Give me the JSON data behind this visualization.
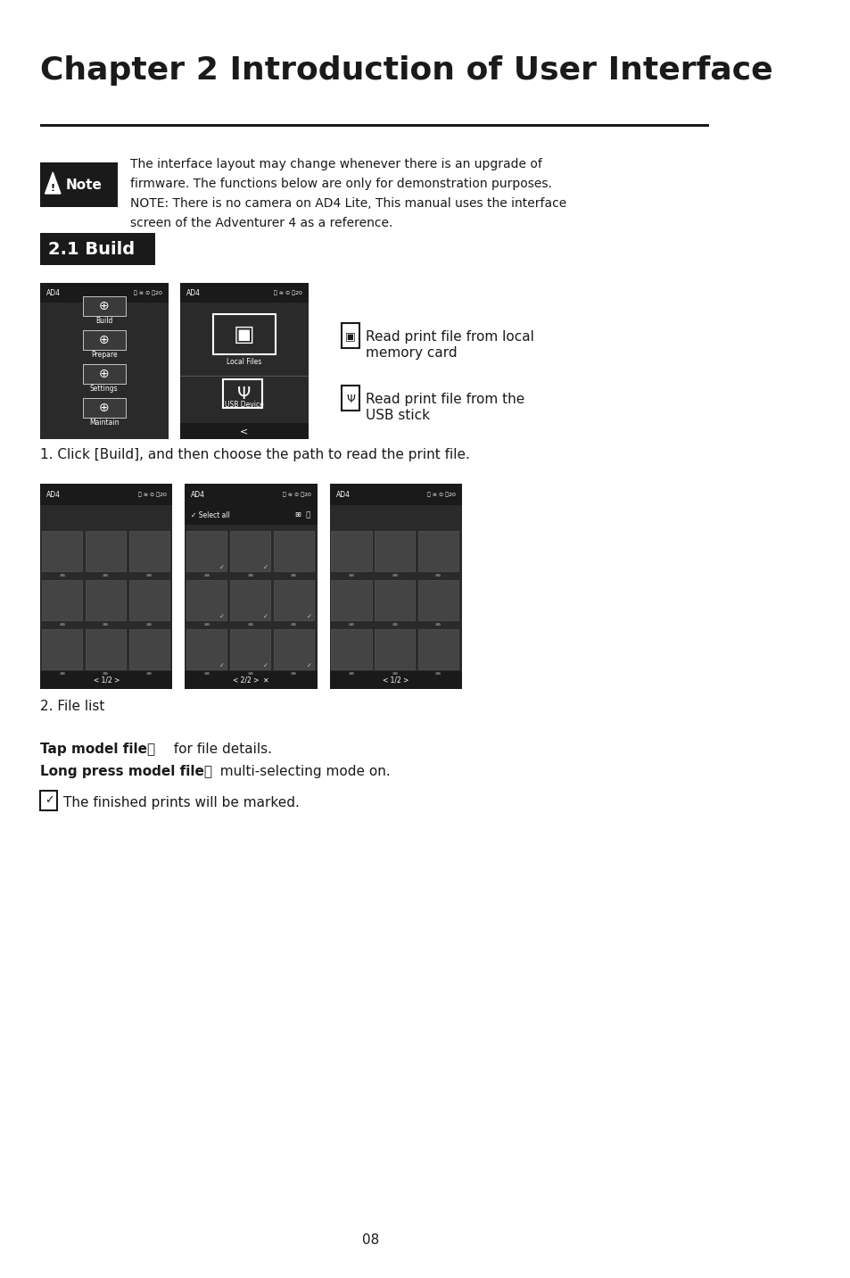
{
  "title": "Chapter 2 Introduction of User Interface",
  "title_fontsize": 26,
  "bg_color": "#ffffff",
  "text_color": "#1a1a1a",
  "section_label": "2.1 Build",
  "section_label_bg": "#1a1a1a",
  "section_label_color": "#ffffff",
  "note_box_bg": "#1a1a1a",
  "note_box_color": "#ffffff",
  "note_text": "The interface layout may change whenever there is an upgrade of\nfirmware. The functions below are only for demonstration purposes.\nNOTE: There is no camera on AD4 Lite, This manual uses the interface\nscreen of the Adventurer 4 as a reference.",
  "step1_text": "1. Click [Build], and then choose the path to read the print file.",
  "step2_text": "2. File list",
  "legend_line1a": "Read print file from local",
  "legend_line1b": "memory card",
  "legend_line2a": "Read print file from the",
  "legend_line2b": "USB stick",
  "tap_text": "Tap model file：  for file details.",
  "long_press_text": "Long press model file：  multi-selecting mode on.",
  "finished_text": "The finished prints will be marked.",
  "page_num": "08",
  "screen_bg": "#2a2a2a",
  "screen_header_bg": "#1a1a1a"
}
